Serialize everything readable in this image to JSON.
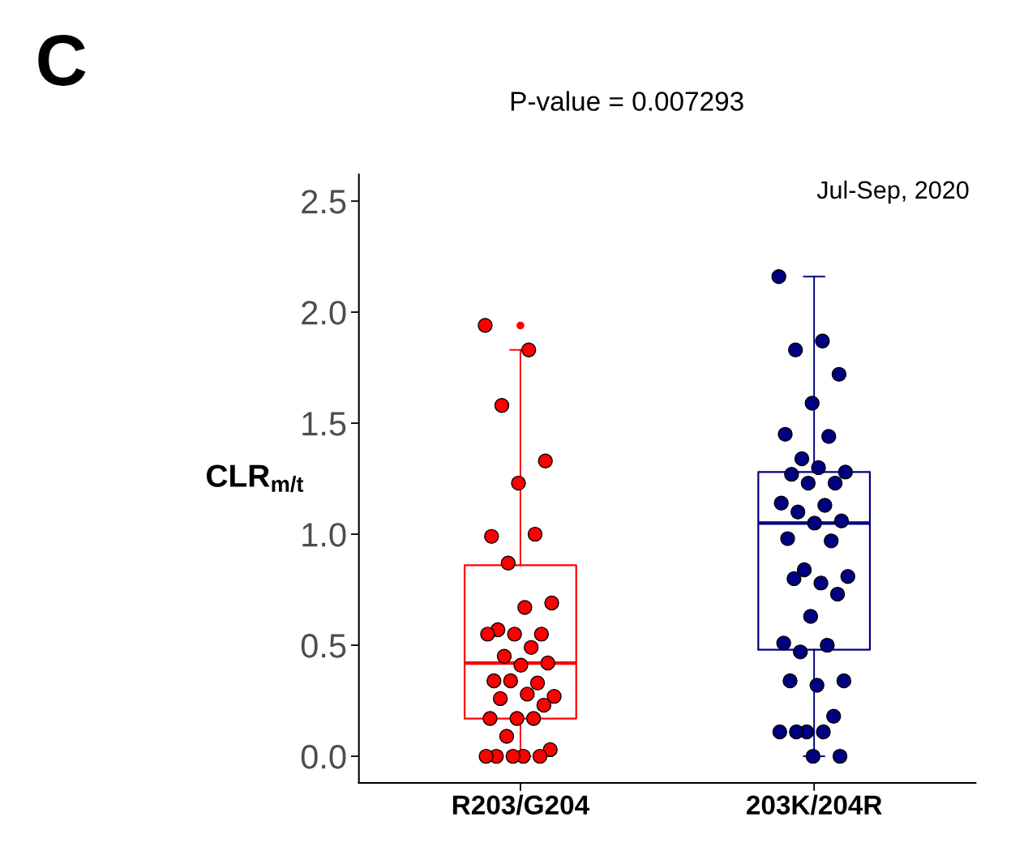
{
  "chart_data": {
    "type": "box",
    "title": "P-value = 0.007293",
    "ylabel": "CLR$_{m/t}$",
    "annotations": [
      "C",
      "Jul-Sep, 2020"
    ],
    "categories": [
      "R203/G204",
      "203K/204R"
    ],
    "colors": [
      "#ff0000",
      "#000080"
    ],
    "boxes": [
      {
        "low": 0.0,
        "q1": 0.17,
        "median": 0.42,
        "q3": 0.86,
        "high": 1.83,
        "outliers": [
          1.94
        ]
      },
      {
        "low": 0.0,
        "q1": 0.48,
        "median": 1.05,
        "q3": 1.28,
        "high": 2.16
      }
    ],
    "series": [
      {
        "type": "scatter",
        "color": "#ff0000",
        "x": [
          "R203/G204",
          "R203/G204",
          "R203/G204",
          "R203/G204",
          "R203/G204",
          "R203/G204",
          "R203/G204",
          "R203/G204",
          "R203/G204",
          "R203/G204",
          "R203/G204",
          "R203/G204",
          "R203/G204",
          "R203/G204",
          "R203/G204",
          "R203/G204",
          "R203/G204",
          "R203/G204",
          "R203/G204",
          "R203/G204",
          "R203/G204",
          "R203/G204",
          "R203/G204",
          "R203/G204",
          "R203/G204",
          "R203/G204",
          "R203/G204",
          "R203/G204",
          "R203/G204",
          "R203/G204",
          "R203/G204",
          "R203/G204",
          "R203/G204",
          "R203/G204",
          "R203/G204"
        ],
        "values": [
          1.94,
          1.83,
          1.58,
          1.33,
          1.23,
          0.99,
          1.0,
          0.87,
          0.69,
          0.67,
          0.57,
          0.55,
          0.55,
          0.55,
          0.49,
          0.45,
          0.42,
          0.41,
          0.34,
          0.33,
          0.34,
          0.27,
          0.28,
          0.26,
          0.23,
          0.17,
          0.17,
          0.17,
          0.09,
          0.03,
          0.0,
          0.0,
          0.0,
          0.0,
          0.0
        ]
      },
      {
        "type": "scatter",
        "color": "#000080",
        "x": [
          "203K/204R",
          "203K/204R",
          "203K/204R",
          "203K/204R",
          "203K/204R",
          "203K/204R",
          "203K/204R",
          "203K/204R",
          "203K/204R",
          "203K/204R",
          "203K/204R",
          "203K/204R",
          "203K/204R",
          "203K/204R",
          "203K/204R",
          "203K/204R",
          "203K/204R",
          "203K/204R",
          "203K/204R",
          "203K/204R",
          "203K/204R",
          "203K/204R",
          "203K/204R",
          "203K/204R",
          "203K/204R",
          "203K/204R",
          "203K/204R",
          "203K/204R",
          "203K/204R",
          "203K/204R",
          "203K/204R",
          "203K/204R",
          "203K/204R",
          "203K/204R",
          "203K/204R",
          "203K/204R",
          "203K/204R",
          "203K/204R",
          "203K/204R"
        ],
        "values": [
          2.16,
          1.87,
          1.83,
          1.72,
          1.59,
          1.45,
          1.44,
          1.34,
          1.28,
          1.3,
          1.27,
          1.23,
          1.23,
          1.14,
          1.13,
          1.1,
          1.06,
          1.05,
          0.98,
          0.97,
          0.84,
          0.81,
          0.78,
          0.8,
          0.73,
          0.63,
          0.51,
          0.5,
          0.47,
          0.34,
          0.32,
          0.34,
          0.18,
          0.11,
          0.11,
          0.11,
          0.11,
          0.0,
          0.0
        ]
      }
    ],
    "ylim": [
      -0.12,
      2.62
    ],
    "yticks": [
      {
        "value": 0.0,
        "label": "0.0"
      },
      0.5,
      {
        "value": 1.0,
        "label": "1.0"
      },
      1.5,
      {
        "value": 2.0,
        "label": "2.0"
      },
      2.5
    ],
    "grid": false,
    "marker": "circle"
  }
}
